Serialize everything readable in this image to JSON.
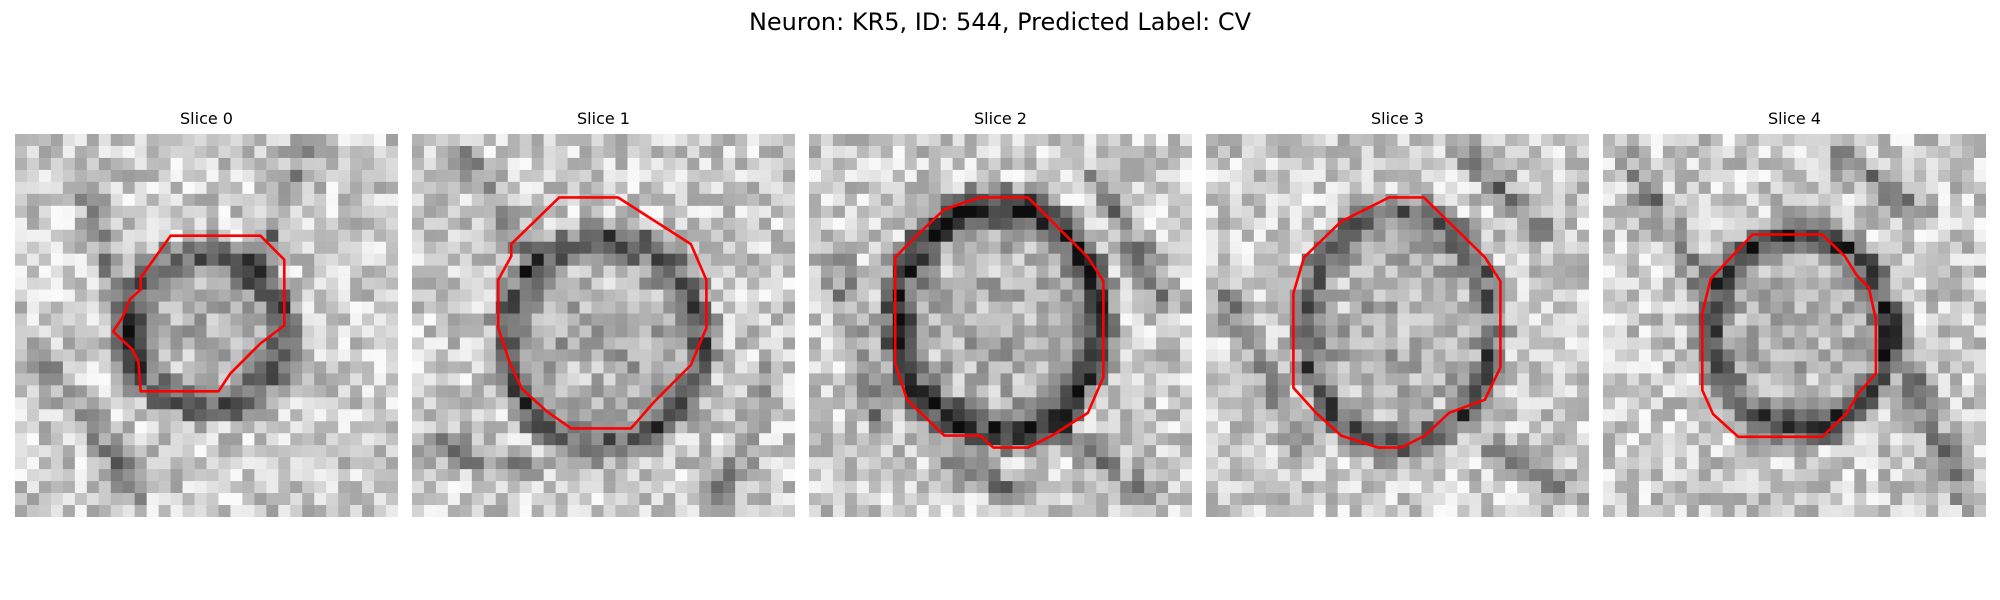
{
  "figure": {
    "title": "Neuron: KR5, ID: 544, Predicted Label: CV"
  },
  "panels": [
    {
      "title": "Slice 0",
      "image_description": "grayscale microscopy crop with red contour"
    },
    {
      "title": "Slice 1",
      "image_description": "grayscale microscopy crop with red contour"
    },
    {
      "title": "Slice 2",
      "image_description": "grayscale microscopy crop with red contour"
    },
    {
      "title": "Slice 3",
      "image_description": "grayscale microscopy crop with red contour"
    },
    {
      "title": "Slice 4",
      "image_description": "grayscale microscopy crop with red contour"
    }
  ],
  "colors": {
    "contour": "#ff0000",
    "background": "#ffffff"
  }
}
